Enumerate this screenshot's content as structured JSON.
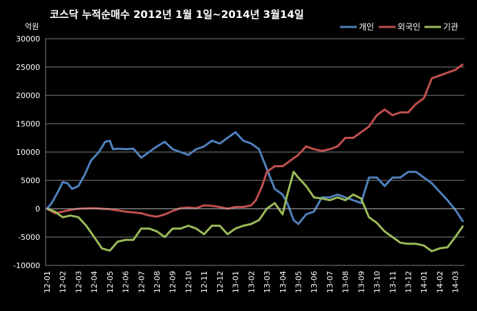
{
  "chart_data": {
    "type": "line",
    "title": "코스닥  누적순매수 2012년 1월 1일~2014년 3월14일",
    "unit_label": "억원",
    "ylim": [
      -10000,
      30000
    ],
    "y_ticks": [
      30000,
      25000,
      20000,
      15000,
      10000,
      5000,
      0,
      -5000,
      -10000
    ],
    "x_ticks": [
      "12-01",
      "12-02",
      "12-03",
      "12-04",
      "12-05",
      "12-06",
      "12-07",
      "12-08",
      "12-09",
      "12-10",
      "12-11",
      "12-12",
      "13-01",
      "13-02",
      "13-03",
      "13-04",
      "13-05",
      "13-06",
      "13-07",
      "13-08",
      "13-09",
      "13-10",
      "13-11",
      "13-12",
      "14-01",
      "14-02",
      "14-03"
    ],
    "grid": true,
    "legend_position": "top-right",
    "x_range": [
      0,
      26.5
    ],
    "series": [
      {
        "name": "개인",
        "color": "#4F81BD",
        "points": [
          [
            0,
            0
          ],
          [
            0.3,
            1000
          ],
          [
            0.7,
            3000
          ],
          [
            1,
            4700
          ],
          [
            1.3,
            4500
          ],
          [
            1.6,
            3500
          ],
          [
            2,
            4000
          ],
          [
            2.4,
            6000
          ],
          [
            2.8,
            8500
          ],
          [
            3.3,
            10000
          ],
          [
            3.7,
            11800
          ],
          [
            4,
            12000
          ],
          [
            4.2,
            10500
          ],
          [
            4.6,
            10600
          ],
          [
            5,
            10500
          ],
          [
            5.5,
            10600
          ],
          [
            6,
            9000
          ],
          [
            6.5,
            10000
          ],
          [
            7,
            11000
          ],
          [
            7.5,
            11800
          ],
          [
            8,
            10500
          ],
          [
            8.5,
            10000
          ],
          [
            9,
            9500
          ],
          [
            9.5,
            10500
          ],
          [
            10,
            11000
          ],
          [
            10.5,
            12000
          ],
          [
            11,
            11500
          ],
          [
            11.5,
            12500
          ],
          [
            12,
            13500
          ],
          [
            12.5,
            12000
          ],
          [
            13,
            11500
          ],
          [
            13.5,
            10500
          ],
          [
            14,
            7000
          ],
          [
            14.5,
            3500
          ],
          [
            15,
            2500
          ],
          [
            15.3,
            1000
          ],
          [
            15.7,
            -2000
          ],
          [
            16,
            -2700
          ],
          [
            16.5,
            -1000
          ],
          [
            17,
            -500
          ],
          [
            17.5,
            2000
          ],
          [
            18,
            2000
          ],
          [
            18.5,
            2500
          ],
          [
            19,
            2000
          ],
          [
            19.5,
            1500
          ],
          [
            20,
            1000
          ],
          [
            20.5,
            5500
          ],
          [
            21,
            5500
          ],
          [
            21.5,
            4000
          ],
          [
            22,
            5500
          ],
          [
            22.5,
            5500
          ],
          [
            23,
            6500
          ],
          [
            23.5,
            6500
          ],
          [
            24,
            5500
          ],
          [
            24.5,
            4500
          ],
          [
            25,
            3000
          ],
          [
            25.5,
            1500
          ],
          [
            26,
            -200
          ],
          [
            26.5,
            -2300
          ]
        ]
      },
      {
        "name": "외국인",
        "color": "#C0504D",
        "points": [
          [
            0,
            0
          ],
          [
            0.5,
            -800
          ],
          [
            1,
            -500
          ],
          [
            1.5,
            -200
          ],
          [
            2,
            0
          ],
          [
            3,
            100
          ],
          [
            4,
            -100
          ],
          [
            5,
            -500
          ],
          [
            6,
            -800
          ],
          [
            6.5,
            -1200
          ],
          [
            7,
            -1400
          ],
          [
            7.5,
            -1000
          ],
          [
            8,
            -400
          ],
          [
            8.5,
            100
          ],
          [
            9,
            200
          ],
          [
            9.5,
            100
          ],
          [
            10,
            600
          ],
          [
            10.5,
            500
          ],
          [
            11,
            300
          ],
          [
            11.5,
            0
          ],
          [
            12,
            300
          ],
          [
            12.5,
            300
          ],
          [
            13,
            600
          ],
          [
            13.3,
            1500
          ],
          [
            13.7,
            4000
          ],
          [
            14,
            6500
          ],
          [
            14.5,
            7500
          ],
          [
            15,
            7500
          ],
          [
            15.5,
            8500
          ],
          [
            16,
            9500
          ],
          [
            16.5,
            11000
          ],
          [
            17,
            10500
          ],
          [
            17.5,
            10200
          ],
          [
            18,
            10500
          ],
          [
            18.5,
            11000
          ],
          [
            19,
            12500
          ],
          [
            19.5,
            12500
          ],
          [
            20,
            13500
          ],
          [
            20.5,
            14500
          ],
          [
            21,
            16500
          ],
          [
            21.5,
            17500
          ],
          [
            22,
            16500
          ],
          [
            22.5,
            17000
          ],
          [
            23,
            17000
          ],
          [
            23.5,
            18500
          ],
          [
            24,
            19500
          ],
          [
            24.5,
            23000
          ],
          [
            25,
            23500
          ],
          [
            25.5,
            24000
          ],
          [
            26,
            24500
          ],
          [
            26.5,
            25500
          ]
        ]
      },
      {
        "name": "기관",
        "color": "#9BBB59",
        "points": [
          [
            0,
            0
          ],
          [
            0.5,
            -500
          ],
          [
            1,
            -1500
          ],
          [
            1.5,
            -1200
          ],
          [
            2,
            -1500
          ],
          [
            2.5,
            -3000
          ],
          [
            3,
            -5000
          ],
          [
            3.5,
            -7000
          ],
          [
            4,
            -7400
          ],
          [
            4.5,
            -5800
          ],
          [
            5,
            -5500
          ],
          [
            5.5,
            -5500
          ],
          [
            6,
            -3500
          ],
          [
            6.5,
            -3500
          ],
          [
            7,
            -4000
          ],
          [
            7.5,
            -5000
          ],
          [
            8,
            -3500
          ],
          [
            8.5,
            -3500
          ],
          [
            9,
            -3000
          ],
          [
            9.5,
            -3500
          ],
          [
            10,
            -4500
          ],
          [
            10.5,
            -3000
          ],
          [
            11,
            -3000
          ],
          [
            11.5,
            -4500
          ],
          [
            12,
            -3500
          ],
          [
            12.5,
            -3000
          ],
          [
            13,
            -2700
          ],
          [
            13.5,
            -2000
          ],
          [
            14,
            0
          ],
          [
            14.5,
            1000
          ],
          [
            15,
            -1000
          ],
          [
            15.3,
            2500
          ],
          [
            15.7,
            6500
          ],
          [
            16,
            5500
          ],
          [
            16.5,
            4000
          ],
          [
            17,
            2000
          ],
          [
            17.5,
            1800
          ],
          [
            18,
            1500
          ],
          [
            18.5,
            2000
          ],
          [
            19,
            1500
          ],
          [
            19.5,
            2500
          ],
          [
            20,
            1800
          ],
          [
            20.5,
            -1500
          ],
          [
            21,
            -2500
          ],
          [
            21.5,
            -4000
          ],
          [
            22,
            -5000
          ],
          [
            22.5,
            -6000
          ],
          [
            23,
            -6200
          ],
          [
            23.5,
            -6200
          ],
          [
            24,
            -6500
          ],
          [
            24.5,
            -7500
          ],
          [
            25,
            -7000
          ],
          [
            25.5,
            -6800
          ],
          [
            26,
            -5000
          ],
          [
            26.5,
            -3000
          ]
        ]
      }
    ]
  }
}
